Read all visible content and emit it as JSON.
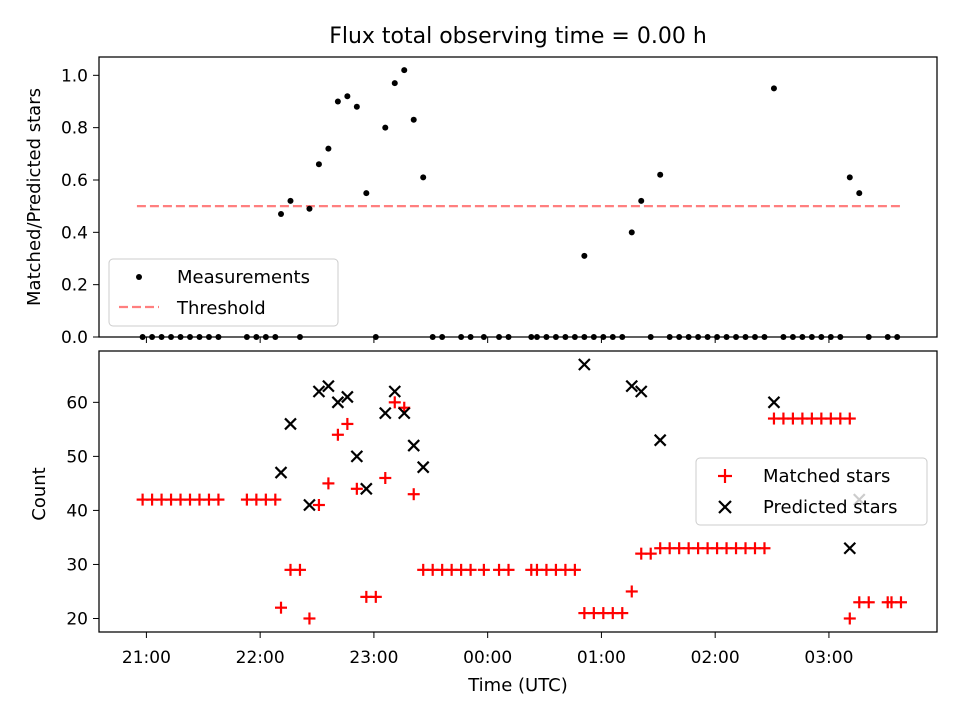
{
  "chart_data": [
    {
      "type": "scatter",
      "title": "Flux total observing time = 0.00 h",
      "xlabel": "",
      "ylabel": "Matched/Predicted stars",
      "xlim": [
        "20:35",
        "03:57"
      ],
      "ylim": [
        0,
        1.07
      ],
      "yticks": [
        "0.0",
        "0.2",
        "0.4",
        "0.6",
        "0.8",
        "1.0"
      ],
      "grid": false,
      "legend_position": "lower-left",
      "series": [
        {
          "name": "Measurements",
          "color": "#000000",
          "marker": "dot",
          "points": [
            [
              "20:58",
              0
            ],
            [
              "21:03",
              0
            ],
            [
              "21:08",
              0
            ],
            [
              "21:13",
              0
            ],
            [
              "21:18",
              0
            ],
            [
              "21:23",
              0
            ],
            [
              "21:28",
              0
            ],
            [
              "21:33",
              0
            ],
            [
              "21:38",
              0
            ],
            [
              "21:53",
              0
            ],
            [
              "21:58",
              0
            ],
            [
              "22:03",
              0
            ],
            [
              "22:08",
              0
            ],
            [
              "22:11",
              0.47
            ],
            [
              "22:16",
              0.52
            ],
            [
              "22:21",
              0
            ],
            [
              "22:26",
              0.49
            ],
            [
              "22:31",
              0.66
            ],
            [
              "22:36",
              0.72
            ],
            [
              "22:41",
              0.9
            ],
            [
              "22:46",
              0.92
            ],
            [
              "22:51",
              0.88
            ],
            [
              "22:56",
              0.55
            ],
            [
              "23:01",
              0
            ],
            [
              "23:06",
              0.8
            ],
            [
              "23:11",
              0.97
            ],
            [
              "23:16",
              1.02
            ],
            [
              "23:21",
              0.83
            ],
            [
              "23:26",
              0.61
            ],
            [
              "23:31",
              0
            ],
            [
              "23:36",
              0
            ],
            [
              "23:46",
              0
            ],
            [
              "23:51",
              0
            ],
            [
              "23:58",
              0
            ],
            [
              "00:06",
              0
            ],
            [
              "00:11",
              0
            ],
            [
              "00:23",
              0
            ],
            [
              "00:26",
              0
            ],
            [
              "00:31",
              0
            ],
            [
              "00:36",
              0
            ],
            [
              "00:41",
              0
            ],
            [
              "00:46",
              0
            ],
            [
              "00:51",
              0
            ],
            [
              "00:51",
              0.31
            ],
            [
              "00:56",
              0
            ],
            [
              "01:01",
              0
            ],
            [
              "01:06",
              0
            ],
            [
              "01:11",
              0
            ],
            [
              "01:16",
              0.4
            ],
            [
              "01:21",
              0.52
            ],
            [
              "01:26",
              0
            ],
            [
              "01:31",
              0.62
            ],
            [
              "01:36",
              0
            ],
            [
              "01:41",
              0
            ],
            [
              "01:46",
              0
            ],
            [
              "01:51",
              0
            ],
            [
              "01:56",
              0
            ],
            [
              "02:01",
              0
            ],
            [
              "02:06",
              0
            ],
            [
              "02:11",
              0
            ],
            [
              "02:16",
              0
            ],
            [
              "02:21",
              0
            ],
            [
              "02:26",
              0
            ],
            [
              "02:31",
              0.95
            ],
            [
              "02:36",
              0
            ],
            [
              "02:41",
              0
            ],
            [
              "02:46",
              0
            ],
            [
              "02:51",
              0
            ],
            [
              "02:56",
              0
            ],
            [
              "03:01",
              0
            ],
            [
              "03:06",
              0
            ],
            [
              "03:11",
              0.61
            ],
            [
              "03:16",
              0.55
            ],
            [
              "03:21",
              0
            ],
            [
              "03:31",
              0
            ],
            [
              "03:36",
              0
            ]
          ]
        },
        {
          "name": "Threshold",
          "color": "#ff7f7f",
          "style": "dashed",
          "points": [
            [
              "20:55",
              0.5
            ],
            [
              "03:38",
              0.5
            ]
          ]
        }
      ]
    },
    {
      "type": "scatter",
      "title": "",
      "xlabel": "Time (UTC)",
      "ylabel": "Count",
      "xlim": [
        "20:35",
        "03:57"
      ],
      "ylim": [
        17.5,
        69.5
      ],
      "xticks": [
        "21:00",
        "22:00",
        "23:00",
        "00:00",
        "01:00",
        "02:00",
        "03:00"
      ],
      "yticks": [
        "20",
        "30",
        "40",
        "50",
        "60"
      ],
      "grid": false,
      "legend_position": "right",
      "series": [
        {
          "name": "Matched stars",
          "color": "#ff0000",
          "marker": "plus",
          "points": [
            [
              "20:58",
              42
            ],
            [
              "21:03",
              42
            ],
            [
              "21:08",
              42
            ],
            [
              "21:13",
              42
            ],
            [
              "21:18",
              42
            ],
            [
              "21:23",
              42
            ],
            [
              "21:28",
              42
            ],
            [
              "21:33",
              42
            ],
            [
              "21:38",
              42
            ],
            [
              "21:53",
              42
            ],
            [
              "21:58",
              42
            ],
            [
              "22:03",
              42
            ],
            [
              "22:08",
              42
            ],
            [
              "22:11",
              22
            ],
            [
              "22:16",
              29
            ],
            [
              "22:21",
              29
            ],
            [
              "22:26",
              20
            ],
            [
              "22:31",
              41
            ],
            [
              "22:36",
              45
            ],
            [
              "22:41",
              54
            ],
            [
              "22:46",
              56
            ],
            [
              "22:51",
              44
            ],
            [
              "22:56",
              24
            ],
            [
              "23:01",
              24
            ],
            [
              "23:06",
              46
            ],
            [
              "23:11",
              60
            ],
            [
              "23:16",
              59
            ],
            [
              "23:21",
              43
            ],
            [
              "23:26",
              29
            ],
            [
              "23:31",
              29
            ],
            [
              "23:36",
              29
            ],
            [
              "23:41",
              29
            ],
            [
              "23:46",
              29
            ],
            [
              "23:51",
              29
            ],
            [
              "23:58",
              29
            ],
            [
              "00:06",
              29
            ],
            [
              "00:11",
              29
            ],
            [
              "00:23",
              29
            ],
            [
              "00:26",
              29
            ],
            [
              "00:31",
              29
            ],
            [
              "00:36",
              29
            ],
            [
              "00:41",
              29
            ],
            [
              "00:46",
              29
            ],
            [
              "00:51",
              21
            ],
            [
              "00:56",
              21
            ],
            [
              "01:01",
              21
            ],
            [
              "01:06",
              21
            ],
            [
              "01:11",
              21
            ],
            [
              "01:16",
              25
            ],
            [
              "01:21",
              32
            ],
            [
              "01:26",
              32
            ],
            [
              "01:31",
              33
            ],
            [
              "01:36",
              33
            ],
            [
              "01:41",
              33
            ],
            [
              "01:46",
              33
            ],
            [
              "01:51",
              33
            ],
            [
              "01:56",
              33
            ],
            [
              "02:01",
              33
            ],
            [
              "02:06",
              33
            ],
            [
              "02:11",
              33
            ],
            [
              "02:16",
              33
            ],
            [
              "02:21",
              33
            ],
            [
              "02:26",
              33
            ],
            [
              "02:31",
              57
            ],
            [
              "02:36",
              57
            ],
            [
              "02:41",
              57
            ],
            [
              "02:46",
              57
            ],
            [
              "02:51",
              57
            ],
            [
              "02:56",
              57
            ],
            [
              "03:01",
              57
            ],
            [
              "03:06",
              57
            ],
            [
              "03:11",
              57
            ],
            [
              "03:11",
              20
            ],
            [
              "03:16",
              23
            ],
            [
              "03:21",
              23
            ],
            [
              "03:31",
              23
            ],
            [
              "03:33",
              23
            ],
            [
              "03:38",
              23
            ]
          ]
        },
        {
          "name": "Predicted stars",
          "color": "#000000",
          "marker": "x",
          "points": [
            [
              "22:11",
              47
            ],
            [
              "22:16",
              56
            ],
            [
              "22:26",
              41
            ],
            [
              "22:31",
              62
            ],
            [
              "22:36",
              63
            ],
            [
              "22:41",
              60
            ],
            [
              "22:46",
              61
            ],
            [
              "22:51",
              50
            ],
            [
              "22:56",
              44
            ],
            [
              "23:06",
              58
            ],
            [
              "23:11",
              62
            ],
            [
              "23:16",
              58
            ],
            [
              "23:21",
              52
            ],
            [
              "23:26",
              48
            ],
            [
              "00:51",
              67
            ],
            [
              "01:16",
              63
            ],
            [
              "01:21",
              62
            ],
            [
              "01:31",
              53
            ],
            [
              "02:31",
              60
            ],
            [
              "03:11",
              33
            ],
            [
              "03:16",
              42
            ]
          ]
        }
      ]
    }
  ]
}
